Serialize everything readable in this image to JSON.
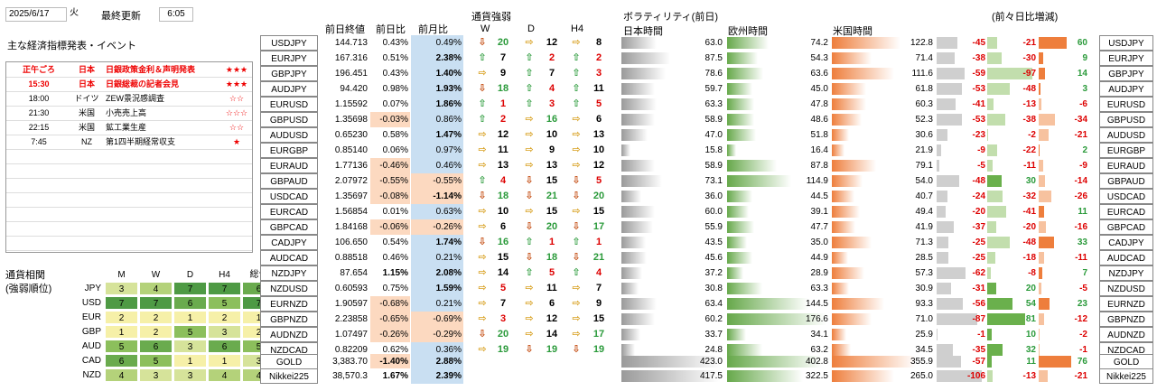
{
  "header": {
    "date": "2025/6/17",
    "weekday": "火",
    "updated_label": "最終更新",
    "updated_time": "6:05"
  },
  "events_title": "主な経済指標発表・イベント",
  "events": [
    {
      "time": "正午ごろ",
      "country": "日本",
      "name": "日銀政策金利＆声明発表",
      "stars": "★★★",
      "red": true
    },
    {
      "time": "15:30",
      "country": "日本",
      "name": "日銀総裁の記者会見",
      "stars": "★★★",
      "red": true
    },
    {
      "time": "18:00",
      "country": "ドイツ",
      "name": "ZEW景況感調査",
      "stars": "☆☆",
      "red": false
    },
    {
      "time": "21:30",
      "country": "米国",
      "name": "小売売上高",
      "stars": "☆☆☆",
      "red": false
    },
    {
      "time": "22:15",
      "country": "米国",
      "name": "鉱工業生産",
      "stars": "☆☆",
      "red": false
    },
    {
      "time": "7:45",
      "country": "NZ",
      "name": "第1四半期経常収支",
      "stars": "★",
      "red": false
    }
  ],
  "corr": {
    "title1": "通貨相関",
    "title2": "(強弱順位)",
    "cols": [
      "M",
      "W",
      "D",
      "H4",
      "総合"
    ],
    "rows": [
      {
        "c": "JPY",
        "v": [
          3,
          4,
          7,
          7,
          6
        ]
      },
      {
        "c": "USD",
        "v": [
          7,
          7,
          6,
          5,
          7
        ]
      },
      {
        "c": "EUR",
        "v": [
          2,
          2,
          1,
          2,
          1
        ]
      },
      {
        "c": "GBP",
        "v": [
          1,
          2,
          5,
          3,
          2
        ]
      },
      {
        "c": "AUD",
        "v": [
          5,
          6,
          3,
          6,
          5
        ]
      },
      {
        "c": "CAD",
        "v": [
          6,
          5,
          1,
          1,
          3
        ]
      },
      {
        "c": "NZD",
        "v": [
          4,
          3,
          3,
          4,
          4
        ]
      }
    ]
  },
  "colheads": {
    "prev": "前日終値",
    "dod": "前日比",
    "mom": "前月比",
    "strength": "通貨強弱",
    "w": "W",
    "d": "D",
    "h4": "H4",
    "vol": "ボラティリティ(前日)",
    "jp": "日本時間",
    "eu": "欧州時間",
    "us": "米国時間",
    "chg": "(前々日比増減)"
  },
  "rows": [
    {
      "p": "USDJPY",
      "close": "144.713",
      "dod": "0.43%",
      "mom": "0.49%",
      "w": "↓",
      "wv": "20",
      "d": "⇨",
      "dv": "12",
      "h": "⇨",
      "hv": "8",
      "jp": "63.0",
      "eu": "74.2",
      "us": "122.8",
      "c1": "-45",
      "c2": "-21",
      "c3": "60"
    },
    {
      "p": "EURJPY",
      "close": "167.316",
      "dod": "0.51%",
      "mom": "2.38%",
      "w": "↑",
      "wv": "7",
      "d": "↑",
      "dv": "2",
      "h": "↑",
      "hv": "2",
      "jp": "87.5",
      "eu": "54.3",
      "us": "71.4",
      "c1": "-38",
      "c2": "-30",
      "c3": "9"
    },
    {
      "p": "GBPJPY",
      "close": "196.451",
      "dod": "0.43%",
      "mom": "1.40%",
      "w": "⇨",
      "wv": "9",
      "d": "↑",
      "dv": "7",
      "h": "↑",
      "hv": "3",
      "jp": "78.6",
      "eu": "63.6",
      "us": "111.6",
      "c1": "-59",
      "c2": "-97",
      "c3": "14"
    },
    {
      "p": "AUDJPY",
      "close": "94.420",
      "dod": "0.98%",
      "mom": "1.93%",
      "w": "↓",
      "wv": "18",
      "d": "↑",
      "dv": "4",
      "h": "↑",
      "hv": "11",
      "jp": "59.7",
      "eu": "45.0",
      "us": "61.8",
      "c1": "-53",
      "c2": "-48",
      "c3": "3"
    },
    {
      "p": "EURUSD",
      "close": "1.15592",
      "dod": "0.07%",
      "mom": "1.86%",
      "w": "↑",
      "wv": "1",
      "d": "↑",
      "dv": "3",
      "h": "↑",
      "hv": "5",
      "jp": "63.3",
      "eu": "47.8",
      "us": "60.3",
      "c1": "-41",
      "c2": "-13",
      "c3": "-6"
    },
    {
      "p": "GBPUSD",
      "close": "1.35698",
      "dod": "-0.03%",
      "mom": "0.86%",
      "w": "↑",
      "wv": "2",
      "d": "⇨",
      "dv": "16",
      "h": "⇨",
      "hv": "6",
      "jp": "58.9",
      "eu": "48.6",
      "us": "52.3",
      "c1": "-53",
      "c2": "-38",
      "c3": "-34"
    },
    {
      "p": "AUDUSD",
      "close": "0.65230",
      "dod": "0.58%",
      "mom": "1.47%",
      "w": "⇨",
      "wv": "12",
      "d": "⇨",
      "dv": "10",
      "h": "⇨",
      "hv": "13",
      "jp": "47.0",
      "eu": "51.8",
      "us": "30.6",
      "c1": "-23",
      "c2": "-2",
      "c3": "-21"
    },
    {
      "p": "EURGBP",
      "close": "0.85140",
      "dod": "0.06%",
      "mom": "0.97%",
      "w": "⇨",
      "wv": "11",
      "d": "⇨",
      "dv": "9",
      "h": "⇨",
      "hv": "10",
      "jp": "15.8",
      "eu": "16.4",
      "us": "21.9",
      "c1": "-9",
      "c2": "-22",
      "c3": "2"
    },
    {
      "p": "EURAUD",
      "close": "1.77136",
      "dod": "-0.46%",
      "mom": "0.46%",
      "w": "⇨",
      "wv": "13",
      "d": "⇨",
      "dv": "13",
      "h": "⇨",
      "hv": "12",
      "jp": "58.9",
      "eu": "87.8",
      "us": "79.1",
      "c1": "-5",
      "c2": "-11",
      "c3": "-9"
    },
    {
      "p": "GBPAUD",
      "close": "2.07972",
      "dod": "-0.55%",
      "mom": "-0.55%",
      "w": "↑",
      "wv": "4",
      "d": "↓",
      "dv": "15",
      "h": "↓",
      "hv": "5",
      "jp": "73.1",
      "eu": "114.9",
      "us": "54.0",
      "c1": "-48",
      "c2": "30",
      "c3": "-14"
    },
    {
      "p": "USDCAD",
      "close": "1.35697",
      "dod": "-0.08%",
      "mom": "-1.14%",
      "w": "↓",
      "wv": "18",
      "d": "↓",
      "dv": "21",
      "h": "↓",
      "hv": "20",
      "jp": "36.0",
      "eu": "44.5",
      "us": "40.7",
      "c1": "-24",
      "c2": "-32",
      "c3": "-26"
    },
    {
      "p": "EURCAD",
      "close": "1.56854",
      "dod": "0.01%",
      "mom": "0.63%",
      "w": "⇨",
      "wv": "10",
      "d": "⇨",
      "dv": "15",
      "h": "⇨",
      "hv": "15",
      "jp": "60.0",
      "eu": "39.1",
      "us": "49.4",
      "c1": "-20",
      "c2": "-41",
      "c3": "11"
    },
    {
      "p": "GBPCAD",
      "close": "1.84168",
      "dod": "-0.06%",
      "mom": "-0.26%",
      "w": "⇨",
      "wv": "6",
      "d": "↓",
      "dv": "20",
      "h": "↓",
      "hv": "17",
      "jp": "55.9",
      "eu": "47.7",
      "us": "41.9",
      "c1": "-37",
      "c2": "-20",
      "c3": "-16"
    },
    {
      "p": "CADJPY",
      "close": "106.650",
      "dod": "0.54%",
      "mom": "1.74%",
      "w": "↓",
      "wv": "16",
      "d": "↑",
      "dv": "1",
      "h": "↑",
      "hv": "1",
      "jp": "43.5",
      "eu": "35.0",
      "us": "71.3",
      "c1": "-25",
      "c2": "-48",
      "c3": "33"
    },
    {
      "p": "AUDCAD",
      "close": "0.88518",
      "dod": "0.46%",
      "mom": "0.21%",
      "w": "⇨",
      "wv": "15",
      "d": "↓",
      "dv": "18",
      "h": "↓",
      "hv": "21",
      "jp": "45.6",
      "eu": "44.9",
      "us": "28.5",
      "c1": "-25",
      "c2": "-18",
      "c3": "-11"
    },
    {
      "p": "NZDJPY",
      "close": "87.654",
      "dod": "1.15%",
      "mom": "2.08%",
      "w": "⇨",
      "wv": "14",
      "d": "↑",
      "dv": "5",
      "h": "↑",
      "hv": "4",
      "jp": "37.2",
      "eu": "28.9",
      "us": "57.3",
      "c1": "-62",
      "c2": "-8",
      "c3": "7"
    },
    {
      "p": "NZDUSD",
      "close": "0.60593",
      "dod": "0.75%",
      "mom": "1.59%",
      "w": "⇨",
      "wv": "5",
      "d": "⇨",
      "dv": "11",
      "h": "⇨",
      "hv": "7",
      "jp": "30.8",
      "eu": "63.3",
      "us": "30.9",
      "c1": "-31",
      "c2": "20",
      "c3": "-5"
    },
    {
      "p": "EURNZD",
      "close": "1.90597",
      "dod": "-0.68%",
      "mom": "0.21%",
      "w": "⇨",
      "wv": "7",
      "d": "⇨",
      "dv": "6",
      "h": "⇨",
      "hv": "9",
      "jp": "63.4",
      "eu": "144.5",
      "us": "93.3",
      "c1": "-56",
      "c2": "54",
      "c3": "23"
    },
    {
      "p": "GBPNZD",
      "close": "2.23858",
      "dod": "-0.65%",
      "mom": "-0.69%",
      "w": "⇨",
      "wv": "3",
      "d": "⇨",
      "dv": "12",
      "h": "⇨",
      "hv": "15",
      "jp": "60.2",
      "eu": "176.6",
      "us": "71.0",
      "c1": "-87",
      "c2": "81",
      "c3": "-12"
    },
    {
      "p": "AUDNZD",
      "close": "1.07497",
      "dod": "-0.26%",
      "mom": "-0.29%",
      "w": "↓",
      "wv": "20",
      "d": "⇨",
      "dv": "14",
      "h": "⇨",
      "hv": "17",
      "jp": "33.7",
      "eu": "34.1",
      "us": "25.9",
      "c1": "-1",
      "c2": "10",
      "c3": "-2"
    },
    {
      "p": "NZDCAD",
      "close": "0.82209",
      "dod": "0.62%",
      "mom": "0.36%",
      "w": "⇨",
      "wv": "19",
      "d": "↓",
      "dv": "19",
      "h": "↓",
      "hv": "19",
      "jp": "24.8",
      "eu": "63.2",
      "us": "34.5",
      "c1": "-35",
      "c2": "32",
      "c3": "-1"
    }
  ],
  "extra": [
    {
      "p": "GOLD",
      "close": "3,383.70",
      "dod": "-1.40%",
      "mom": "2.88%",
      "jp": "423.0",
      "eu": "402.8",
      "us": "355.9",
      "c1": "-57",
      "c2": "11",
      "c3": "76"
    },
    {
      "p": "Nikkei225",
      "close": "38,570.3",
      "dod": "1.67%",
      "mom": "2.39%",
      "jp": "417.5",
      "eu": "322.5",
      "us": "265.0",
      "c1": "-106",
      "c2": "-13",
      "c3": "-21"
    }
  ],
  "colors": {
    "jp": "#a0a0a0",
    "eu": "#6ab04c",
    "us": "#f08040",
    "neg": "#e8e8e8",
    "accent_green": "#2a9a3a",
    "accent_red": "#d00000"
  }
}
